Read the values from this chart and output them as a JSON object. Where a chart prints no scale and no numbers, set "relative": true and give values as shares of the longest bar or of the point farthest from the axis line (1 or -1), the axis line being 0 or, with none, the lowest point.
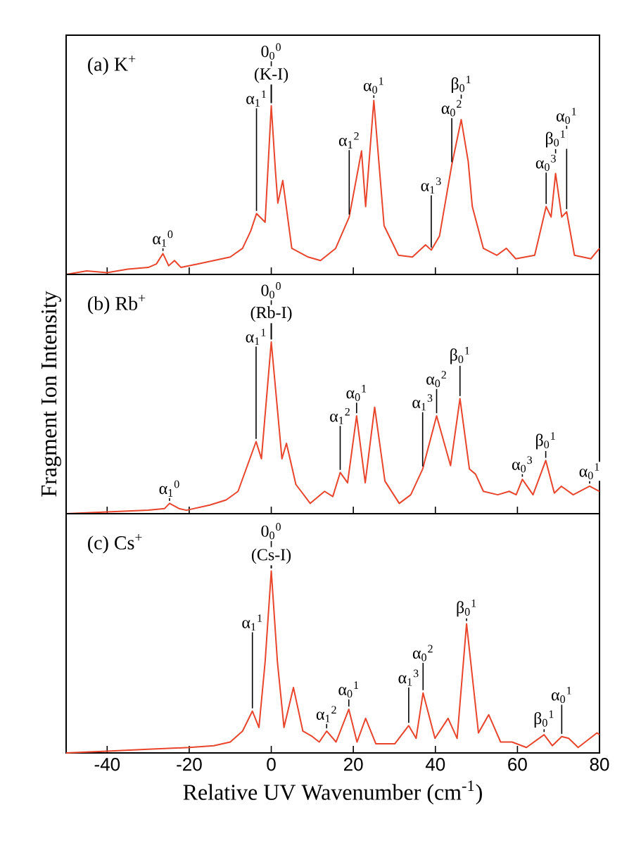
{
  "chart_data": [
    {
      "type": "line",
      "relative": true,
      "title": "(a) K$^{+}$",
      "color": "#e8452c",
      "xlim": [
        -50,
        80
      ],
      "xticks": [
        -40,
        -20,
        0,
        20,
        40,
        60,
        80
      ],
      "tick_labels": false,
      "x": [
        -50,
        -45,
        -40,
        -35,
        -30,
        -28,
        -26.4,
        -25,
        -23.6,
        -22,
        -18,
        -14,
        -10,
        -7,
        -5,
        -3.6,
        -1.5,
        0,
        1,
        1.6,
        2.8,
        5,
        9,
        12,
        15.7,
        19,
        22,
        23,
        25,
        27.5,
        31,
        34.4,
        37.6,
        39,
        41,
        44,
        46.3,
        48,
        49,
        51.7,
        55,
        57.3,
        59.6,
        64.2,
        67,
        68.2,
        69.3,
        70.8,
        72,
        73.9,
        77.9,
        80
      ],
      "values": [
        0.0,
        0.02,
        0.01,
        0.03,
        0.04,
        0.06,
        0.12,
        0.05,
        0.08,
        0.04,
        0.06,
        0.08,
        0.1,
        0.15,
        0.25,
        0.35,
        0.3,
        0.97,
        0.6,
        0.41,
        0.54,
        0.15,
        0.1,
        0.08,
        0.15,
        0.33,
        0.71,
        0.39,
        1.0,
        0.28,
        0.11,
        0.1,
        0.17,
        0.14,
        0.22,
        0.63,
        0.89,
        0.65,
        0.39,
        0.15,
        0.11,
        0.15,
        0.09,
        0.11,
        0.39,
        0.33,
        0.58,
        0.33,
        0.36,
        0.11,
        0.09,
        0.15
      ],
      "annotations": [
        {
          "text": "α$_{1}$$^{0}$",
          "x": -26.4,
          "y": 0.12
        },
        {
          "text": "α$_{1}$$^{1}$",
          "x": -3.6,
          "y": 0.35
        },
        {
          "text": "(K-I)",
          "x": 0,
          "y": 0.97
        },
        {
          "text": "0$_{0}$$^{0}$",
          "x": 0,
          "y": 0.97
        },
        {
          "text": "α$_{1}$$^{2}$",
          "x": 19,
          "y": 0.33
        },
        {
          "text": "α$_{0}$$^{1}$",
          "x": 25,
          "y": 1.0
        },
        {
          "text": "α$_{1}$$^{3}$",
          "x": 39,
          "y": 0.14
        },
        {
          "text": "α$_{0}$$^{2}$",
          "x": 44,
          "y": 0.63
        },
        {
          "text": "β$_{0}$$^{1}$",
          "x": 46.3,
          "y": 0.89
        },
        {
          "text": "α$_{0}$$^{3}$",
          "x": 67,
          "y": 0.39
        },
        {
          "text": "β$_{0}$$^{1}$",
          "x": 69.3,
          "y": 0.58
        },
        {
          "text": "α$_{0}$$^{1}$",
          "x": 72,
          "y": 0.36
        }
      ]
    },
    {
      "type": "line",
      "relative": true,
      "title": "(b) Rb$^{+}$",
      "color": "#e8452c",
      "xlim": [
        -50,
        80
      ],
      "xticks": [
        -40,
        -20,
        0,
        20,
        40,
        60,
        80
      ],
      "tick_labels": false,
      "ylabel": "Fragment Ion Intensity",
      "x": [
        -50,
        -40,
        -30,
        -26,
        -24.8,
        -22.5,
        -20.7,
        -15,
        -11,
        -8.1,
        -3.7,
        -2.4,
        0,
        2.6,
        3.7,
        6,
        9.5,
        13,
        15,
        16.8,
        18.6,
        20.8,
        22.9,
        25.2,
        27.7,
        31.2,
        34,
        36.9,
        40.3,
        43.7,
        46,
        48.3,
        49.8,
        51.7,
        55.2,
        58,
        59.7,
        61.2,
        63.8,
        66.9,
        69,
        70.7,
        73.6,
        77.6,
        80
      ],
      "values": [
        0.0,
        0.01,
        0.02,
        0.03,
        0.06,
        0.03,
        0.02,
        0.05,
        0.08,
        0.13,
        0.42,
        0.32,
        1.0,
        0.32,
        0.41,
        0.17,
        0.06,
        0.13,
        0.1,
        0.24,
        0.18,
        0.57,
        0.18,
        0.62,
        0.19,
        0.06,
        0.11,
        0.26,
        0.57,
        0.28,
        0.67,
        0.26,
        0.23,
        0.13,
        0.11,
        0.13,
        0.11,
        0.2,
        0.11,
        0.31,
        0.12,
        0.16,
        0.11,
        0.16,
        0.13
      ],
      "annotations": [
        {
          "text": "α$_{1}$$^{0}$",
          "x": -24.8,
          "y": 0.06
        },
        {
          "text": "α$_{1}$$^{1}$",
          "x": -3.7,
          "y": 0.42
        },
        {
          "text": "(Rb-I)",
          "x": 0,
          "y": 1.0
        },
        {
          "text": "0$_{0}$$^{0}$",
          "x": 0,
          "y": 1.0
        },
        {
          "text": "α$_{1}$$^{2}$",
          "x": 16.8,
          "y": 0.24
        },
        {
          "text": "α$_{0}$$^{1}$",
          "x": 20.8,
          "y": 0.57
        },
        {
          "text": "α$_{1}$$^{3}$",
          "x": 36.9,
          "y": 0.26
        },
        {
          "text": "α$_{0}$$^{2}$",
          "x": 40.3,
          "y": 0.57
        },
        {
          "text": "β$_{0}$$^{1}$",
          "x": 46,
          "y": 0.67
        },
        {
          "text": "α$_{0}$$^{3}$",
          "x": 61.2,
          "y": 0.2
        },
        {
          "text": "β$_{0}$$^{1}$",
          "x": 66.9,
          "y": 0.31
        },
        {
          "text": "α$_{0}$$^{1}$",
          "x": 77.6,
          "y": 0.16
        }
      ]
    },
    {
      "type": "line",
      "relative": true,
      "title": "(c) Cs$^{+}$",
      "color": "#e8452c",
      "xlim": [
        -50,
        80
      ],
      "xticks": [
        -40,
        -20,
        0,
        20,
        40,
        60,
        80
      ],
      "tick_labels": "x",
      "xlabel": "Relative UV Wavenumber (cm$^{-1}$)",
      "x": [
        -50,
        -40,
        -30,
        -20,
        -14,
        -10,
        -7,
        -4.6,
        -3,
        -1.5,
        0,
        1.5,
        3.1,
        5.4,
        7.7,
        10,
        11.7,
        13.5,
        15.8,
        18.9,
        20.9,
        23,
        25.5,
        30.1,
        33.5,
        35.3,
        37,
        39.9,
        43.1,
        45.3,
        47.6,
        50.5,
        53,
        55.9,
        58.7,
        62.2,
        66.5,
        68.5,
        70.8,
        72.5,
        74.8,
        79.4,
        80
      ],
      "values": [
        0.0,
        0.01,
        0.02,
        0.03,
        0.04,
        0.06,
        0.12,
        0.23,
        0.14,
        0.5,
        1.0,
        0.5,
        0.14,
        0.36,
        0.12,
        0.09,
        0.06,
        0.12,
        0.06,
        0.24,
        0.06,
        0.19,
        0.05,
        0.05,
        0.15,
        0.08,
        0.33,
        0.08,
        0.19,
        0.08,
        0.71,
        0.11,
        0.21,
        0.06,
        0.06,
        0.03,
        0.1,
        0.04,
        0.09,
        0.08,
        0.03,
        0.11,
        0.1
      ],
      "annotations": [
        {
          "text": "α$_{1}$$^{1}$",
          "x": -4.6,
          "y": 0.23
        },
        {
          "text": "(Cs-I)",
          "x": 0,
          "y": 1.0
        },
        {
          "text": "0$_{0}$$^{0}$",
          "x": 0,
          "y": 1.0
        },
        {
          "text": "α$_{1}$$^{2}$",
          "x": 13.5,
          "y": 0.12
        },
        {
          "text": "α$_{0}$$^{1}$",
          "x": 18.9,
          "y": 0.24
        },
        {
          "text": "α$_{1}$$^{3}$",
          "x": 33.5,
          "y": 0.15
        },
        {
          "text": "α$_{0}$$^{2}$",
          "x": 37,
          "y": 0.33
        },
        {
          "text": "β$_{0}$$^{1}$",
          "x": 47.6,
          "y": 0.71
        },
        {
          "text": "β$_{0}$$^{1}$",
          "x": 66.5,
          "y": 0.1
        },
        {
          "text": "α$_{0}$$^{1}$",
          "x": 70.8,
          "y": 0.09
        }
      ]
    }
  ]
}
